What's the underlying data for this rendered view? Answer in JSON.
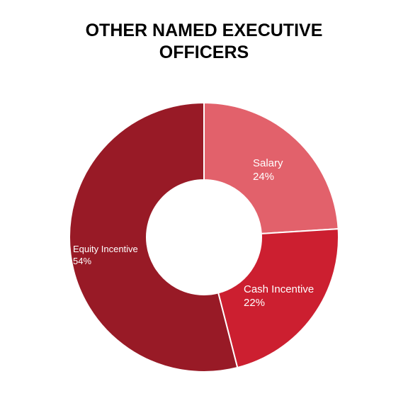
{
  "chart_data": {
    "type": "pie",
    "title_lines": [
      "OTHER NAMED EXECUTIVE",
      "OFFICERS"
    ],
    "donut": true,
    "slices": [
      {
        "label": "Salary",
        "value": 24,
        "value_label": "24%",
        "color": "#e2616b"
      },
      {
        "label": "Cash Incentive",
        "value": 22,
        "value_label": "22%",
        "color": "#cc1f30"
      },
      {
        "label": "Equity Incentive",
        "value": 54,
        "value_label": "54%",
        "color": "#981a26"
      }
    ],
    "legend": "none"
  }
}
